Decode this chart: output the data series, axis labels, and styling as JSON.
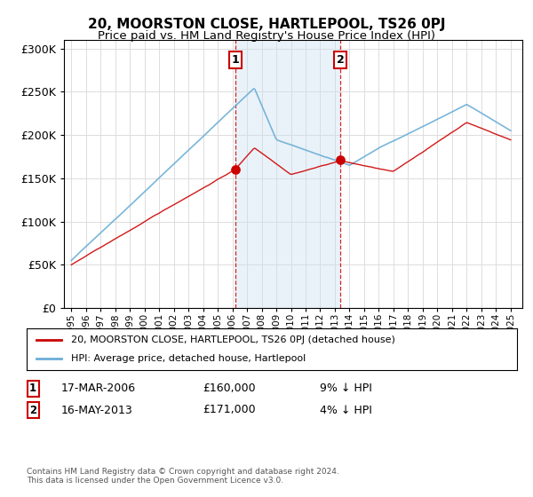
{
  "title": "20, MOORSTON CLOSE, HARTLEPOOL, TS26 0PJ",
  "subtitle": "Price paid vs. HM Land Registry's House Price Index (HPI)",
  "sale1_date": 2006.21,
  "sale1_price": 160000,
  "sale2_date": 2013.37,
  "sale2_price": 171000,
  "sale1_text": "17-MAR-2006",
  "sale1_amount": "£160,000",
  "sale1_hpi": "9% ↓ HPI",
  "sale2_text": "16-MAY-2013",
  "sale2_amount": "£171,000",
  "sale2_hpi": "4% ↓ HPI",
  "hpi_color": "#6baed6",
  "price_color": "#cc0000",
  "shade_color": "#cce0f0",
  "ylim": [
    0,
    310000
  ],
  "yticks": [
    0,
    50000,
    100000,
    150000,
    200000,
    250000,
    300000
  ],
  "legend_line1": "20, MOORSTON CLOSE, HARTLEPOOL, TS26 0PJ (detached house)",
  "legend_line2": "HPI: Average price, detached house, Hartlepool",
  "footer": "Contains HM Land Registry data © Crown copyright and database right 2024.\nThis data is licensed under the Open Government Licence v3.0."
}
